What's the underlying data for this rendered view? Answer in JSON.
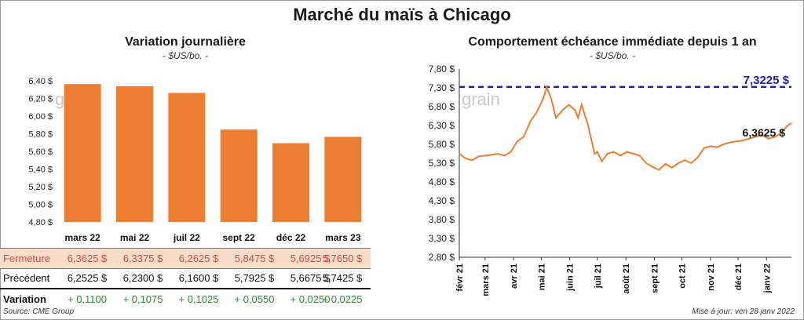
{
  "title": "Marché du maïs à Chicago",
  "left_panel": {
    "title": "Variation  journalière",
    "units": "- $US/bo. -",
    "watermark": "grain"
  },
  "right_panel": {
    "title": "Comportement  échéance immédiate depuis 1 an",
    "units": "- $US/bo. -",
    "watermark": "grain",
    "max_label": "7,3225 $",
    "last_label": "6,3625 $"
  },
  "table": {
    "rows": [
      {
        "label": "Fermeture",
        "values": [
          "6,3625  $",
          "6,3375  $",
          "6,2625  $",
          "5,8475  $",
          "5,6925  $",
          "5,7650  $"
        ]
      },
      {
        "label": "Précédent",
        "values": [
          "6,2525  $",
          "6,2300  $",
          "6,1600  $",
          "5,7925  $",
          "5,6675  $",
          "5,7425  $"
        ]
      },
      {
        "label": "Variation",
        "values": [
          "+ 0,1100",
          "+ 0,1075",
          "+ 0,1025",
          "+ 0,0550",
          "+ 0,0250",
          "+ 0,0225"
        ]
      }
    ]
  },
  "footer": {
    "source": "Source: CME Group",
    "update": "Mise à jour: ven 28 janv 2022"
  },
  "colors": {
    "bar": "#ed7d31",
    "line": "#ed7d31",
    "max_line": "#1f1fa8",
    "close_row_bg": "#f9dcc8",
    "close_row_text": "#c0504d",
    "positive": "#2e8b2e"
  },
  "chart_data": [
    {
      "type": "bar",
      "title": "Variation  journalière",
      "ylabel": "$US/bo.",
      "categories": [
        "mars 22",
        "mai 22",
        "juil 22",
        "sept 22",
        "déc 22",
        "mars 23"
      ],
      "values": [
        6.3625,
        6.3375,
        6.2625,
        5.8475,
        5.6925,
        5.765
      ],
      "ylim": [
        4.8,
        6.4
      ],
      "yticks": [
        "4,80 $",
        "5,00 $",
        "5,20 $",
        "5,40 $",
        "5,60 $",
        "5,80 $",
        "6,00 $",
        "6,20 $",
        "6,40 $"
      ],
      "grid": false
    },
    {
      "type": "line",
      "title": "Comportement  échéance immédiate depuis 1 an",
      "ylabel": "$US/bo.",
      "ylim": [
        2.8,
        7.8
      ],
      "yticks": [
        "2,80 $",
        "3,30 $",
        "3,80 $",
        "4,30 $",
        "4,80 $",
        "5,30 $",
        "5,80 $",
        "6,30 $",
        "6,80 $",
        "7,30 $",
        "7,80 $"
      ],
      "xticks": [
        "févr 21",
        "mars 21",
        "avr 21",
        "mai 21",
        "juin 21",
        "juil 21",
        "août 21",
        "sept 21",
        "oct 21",
        "nov 21",
        "déc 21",
        "janv 22"
      ],
      "reference_line": 7.3225,
      "x": [
        "2021-02-01",
        "2021-02-08",
        "2021-02-15",
        "2021-02-22",
        "2021-03-01",
        "2021-03-08",
        "2021-03-15",
        "2021-03-22",
        "2021-03-29",
        "2021-04-05",
        "2021-04-12",
        "2021-04-19",
        "2021-04-26",
        "2021-05-03",
        "2021-05-07",
        "2021-05-12",
        "2021-05-17",
        "2021-05-24",
        "2021-05-31",
        "2021-06-07",
        "2021-06-10",
        "2021-06-14",
        "2021-06-21",
        "2021-06-28",
        "2021-07-01",
        "2021-07-06",
        "2021-07-12",
        "2021-07-19",
        "2021-07-26",
        "2021-08-02",
        "2021-08-09",
        "2021-08-16",
        "2021-08-23",
        "2021-08-30",
        "2021-09-06",
        "2021-09-13",
        "2021-09-20",
        "2021-09-27",
        "2021-10-04",
        "2021-10-11",
        "2021-10-18",
        "2021-10-25",
        "2021-11-01",
        "2021-11-08",
        "2021-11-15",
        "2021-11-22",
        "2021-11-29",
        "2021-12-06",
        "2021-12-13",
        "2021-12-20",
        "2021-12-27",
        "2022-01-03",
        "2022-01-10",
        "2022-01-17",
        "2022-01-24",
        "2022-01-28"
      ],
      "series": [
        {
          "values": [
            5.55,
            5.42,
            5.38,
            5.48,
            5.5,
            5.52,
            5.55,
            5.5,
            5.6,
            5.88,
            6.0,
            6.4,
            6.65,
            7.0,
            7.32,
            7.0,
            6.5,
            6.7,
            6.85,
            6.7,
            6.5,
            6.85,
            6.3,
            5.55,
            5.6,
            5.35,
            5.55,
            5.6,
            5.5,
            5.6,
            5.55,
            5.5,
            5.3,
            5.2,
            5.12,
            5.28,
            5.18,
            5.3,
            5.38,
            5.3,
            5.45,
            5.7,
            5.75,
            5.72,
            5.8,
            5.85,
            5.88,
            5.9,
            5.95,
            6.0,
            6.05,
            5.95,
            6.0,
            6.1,
            6.3,
            6.3625
          ]
        }
      ]
    }
  ]
}
